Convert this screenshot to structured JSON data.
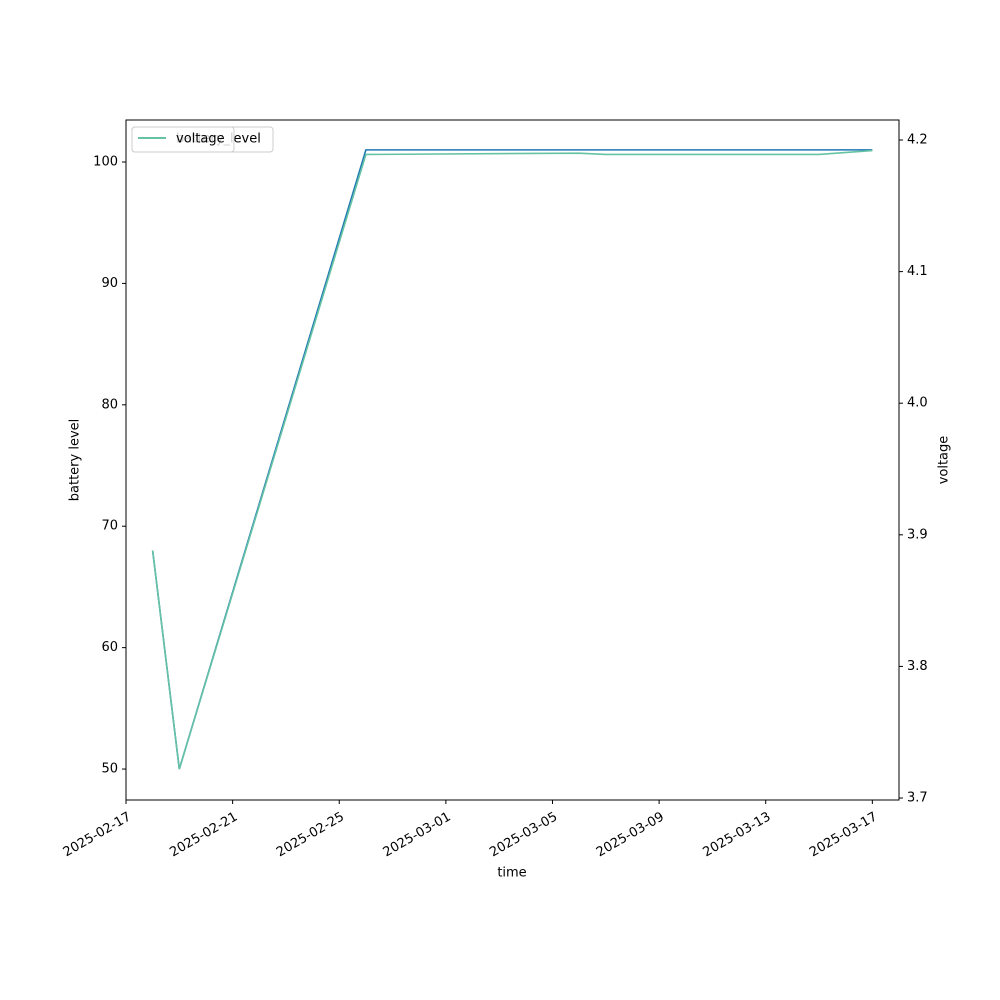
{
  "chart_data": {
    "type": "line",
    "x": [
      "2025-02-18",
      "2025-02-19",
      "2025-02-26",
      "2025-03-06",
      "2025-03-07",
      "2025-03-15",
      "2025-03-17"
    ],
    "series": [
      {
        "name": "battery_level",
        "color": "#1f77b4",
        "values": [
          68,
          50,
          101,
          101,
          101,
          101,
          101
        ]
      },
      {
        "name": "voltage",
        "color": "#66c2a5",
        "axis": "y2",
        "values": [
          3.888,
          3.722,
          4.189,
          4.19,
          4.189,
          4.189,
          4.192
        ]
      }
    ],
    "xlabel": "time",
    "ylabel": "battery level",
    "y2label": "voltage",
    "xlim": [
      "2025-02-17",
      "2025-03-18"
    ],
    "xticks": [
      "2025-02-17",
      "2025-02-21",
      "2025-02-25",
      "2025-03-01",
      "2025-03-05",
      "2025-03-09",
      "2025-03-13",
      "2025-03-17"
    ],
    "ylim": [
      47.45,
      103.46
    ],
    "yticks": [
      50,
      60,
      70,
      80,
      90,
      100
    ],
    "y2lim": [
      3.6985,
      4.2152
    ],
    "y2ticks": [
      3.7,
      3.8,
      3.9,
      {
        "value": 4,
        "label": "4.0"
      },
      4.1,
      4.2
    ],
    "grid": false,
    "legend": "upper left"
  }
}
